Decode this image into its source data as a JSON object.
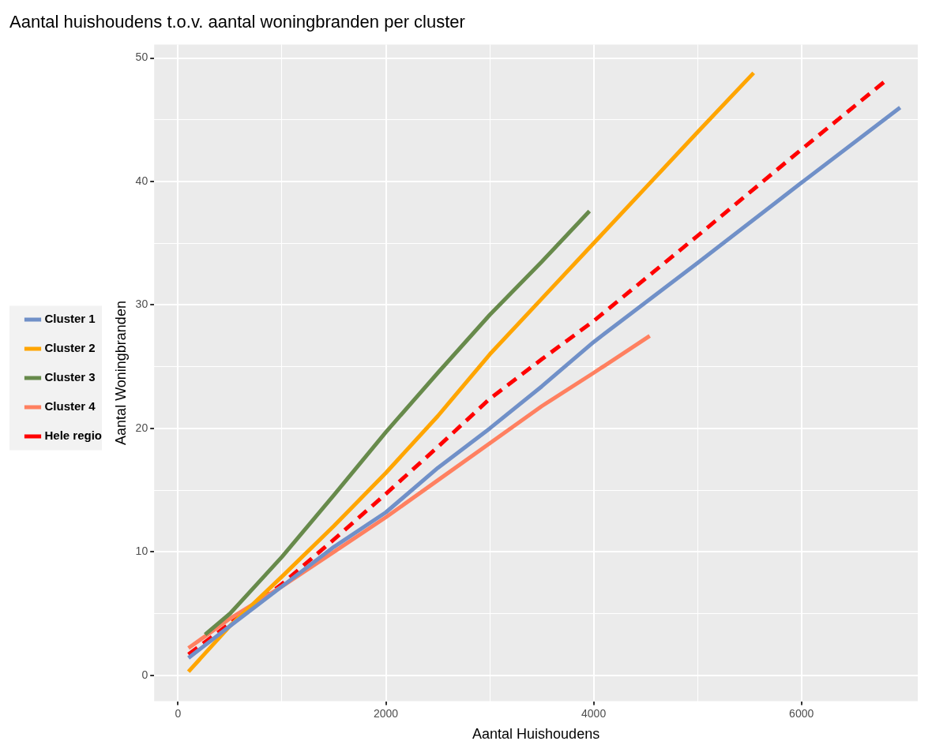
{
  "chart_data": {
    "type": "line",
    "title": "Aantal huishoudens t.o.v. aantal woningbranden per cluster",
    "xlabel": "Aantal Huishoudens",
    "ylabel": "Aantal Woningbranden",
    "xlim": [
      -230,
      7120
    ],
    "ylim": [
      -2.1,
      51.1
    ],
    "xticks": [
      0,
      {
        "value": 1000,
        "label": null
      },
      2000,
      {
        "value": 3000,
        "label": null
      },
      4000,
      {
        "value": 5000,
        "label": null
      },
      6000
    ],
    "yticks": [
      0,
      {
        "value": 5,
        "label": null
      },
      10,
      {
        "value": 15,
        "label": null
      },
      20,
      {
        "value": 25,
        "label": null
      },
      30,
      {
        "value": 35,
        "label": null
      },
      40,
      {
        "value": 45,
        "label": null
      },
      50
    ],
    "grid": true,
    "legend": "left",
    "marker": "none",
    "series": [
      {
        "name": "Cluster 1",
        "color": "#7090c8",
        "line_style": "solid",
        "x": [
          100,
          500,
          1000,
          1500,
          2000,
          2500,
          3000,
          3500,
          4000,
          5000,
          6000,
          6950
        ],
        "values": [
          1.4,
          4,
          7.2,
          10.4,
          13.2,
          16.8,
          20,
          23.4,
          27,
          33.4,
          39.9,
          46
        ]
      },
      {
        "name": "Cluster 2",
        "color": "#ffa500",
        "line_style": "solid",
        "x": [
          100,
          500,
          1000,
          1500,
          2000,
          2500,
          3000,
          3500,
          4000,
          4500,
          5000,
          5540
        ],
        "values": [
          0.3,
          4,
          8,
          12.1,
          16.4,
          21,
          26,
          30.5,
          35,
          39.5,
          44,
          48.8
        ]
      },
      {
        "name": "Cluster 3",
        "color": "#678a4b",
        "line_style": "solid",
        "x": [
          260,
          500,
          1000,
          1500,
          2000,
          2500,
          3000,
          3500,
          3960
        ],
        "values": [
          3.3,
          5,
          9.6,
          14.6,
          19.7,
          24.5,
          29.2,
          33.5,
          37.6
        ]
      },
      {
        "name": "Cluster 4",
        "color": "#ff8060",
        "line_style": "solid",
        "x": [
          100,
          500,
          1000,
          1500,
          2000,
          2500,
          3000,
          3500,
          4000,
          4540
        ],
        "values": [
          2.2,
          4.6,
          7.2,
          10,
          12.8,
          15.8,
          18.8,
          21.8,
          24.5,
          27.5
        ]
      },
      {
        "name": "Hele regio",
        "color": "#ff0000",
        "line_style": "dashed",
        "x": [
          100,
          500,
          1000,
          1500,
          2000,
          2500,
          3000,
          3500,
          4000,
          5000,
          6000,
          6830
        ],
        "values": [
          1.7,
          4.2,
          7.4,
          11,
          14.7,
          18.5,
          22.4,
          25.6,
          28.7,
          35.6,
          42.6,
          48.3
        ]
      }
    ]
  }
}
